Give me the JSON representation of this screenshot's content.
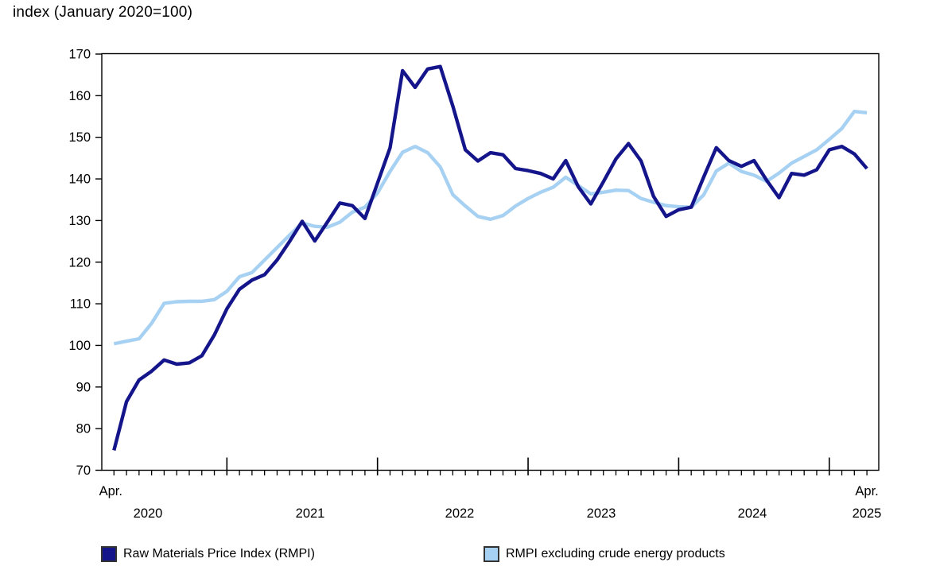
{
  "chart_data": {
    "type": "line",
    "title": "index (January 2020=100)",
    "x_axis": {
      "frequency": "monthly",
      "start": "2020-04",
      "end": "2025-04",
      "start_label": "Apr.",
      "end_label": "Apr.",
      "year_labels": [
        "2020",
        "2021",
        "2022",
        "2023",
        "2024",
        "2025"
      ],
      "major_tick_on": "January"
    },
    "y_axis": {
      "min": 70,
      "max": 170,
      "tick_step": 10,
      "grid": false
    },
    "legend_position": "bottom",
    "series": [
      {
        "name": "Raw Materials Price Index (RMPI)",
        "color": "#15158B",
        "values": [
          74.8,
          86.5,
          91.7,
          93.8,
          96.5,
          95.5,
          95.8,
          97.5,
          102.5,
          108.8,
          113.5,
          115.7,
          117.0,
          120.5,
          125.0,
          129.8,
          125.1,
          129.6,
          134.2,
          133.6,
          130.5,
          139.0,
          147.5,
          166.0,
          162.0,
          166.4,
          167.0,
          157.5,
          147.0,
          144.3,
          146.3,
          145.8,
          142.5,
          142.0,
          141.3,
          140.0,
          144.4,
          138.1,
          134.0,
          139.3,
          144.8,
          148.5,
          144.3,
          135.8,
          131.0,
          132.6,
          133.2,
          140.5,
          147.5,
          144.4,
          143.0,
          144.4,
          139.7,
          135.5,
          141.3,
          140.9,
          142.2,
          147.0,
          147.8,
          146.0,
          142.5
        ]
      },
      {
        "name": "RMPI excluding crude energy products",
        "color": "#A7D1F3",
        "values": [
          100.4,
          101.0,
          101.6,
          105.3,
          110.1,
          110.5,
          110.6,
          110.6,
          111.0,
          113.0,
          116.5,
          117.5,
          120.5,
          123.5,
          126.5,
          129.4,
          128.6,
          128.4,
          129.6,
          132.0,
          133.2,
          136.6,
          141.8,
          146.4,
          147.8,
          146.3,
          142.9,
          136.2,
          133.5,
          131.0,
          130.3,
          131.2,
          133.5,
          135.3,
          136.8,
          138.0,
          140.4,
          138.4,
          136.4,
          136.8,
          137.3,
          137.2,
          135.3,
          134.4,
          133.6,
          133.3,
          133.2,
          136.2,
          141.9,
          143.8,
          141.8,
          140.9,
          139.4,
          141.4,
          143.8,
          145.4,
          147.0,
          149.5,
          152.1,
          156.2,
          155.9
        ]
      }
    ]
  }
}
